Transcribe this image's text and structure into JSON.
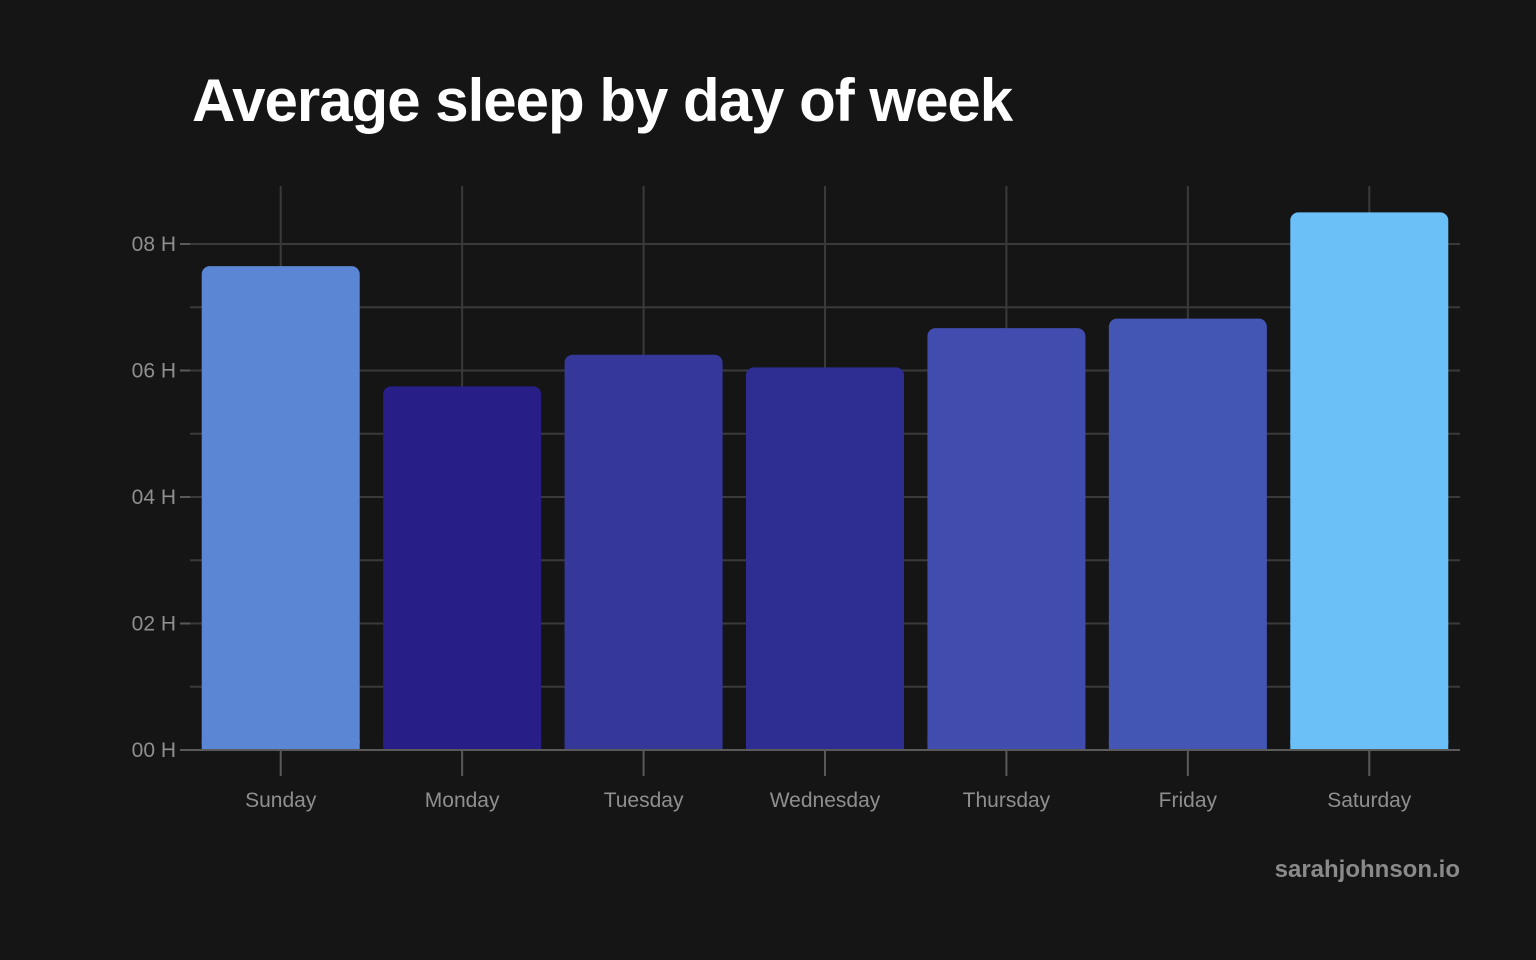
{
  "title": "Average sleep by day of week",
  "credit": "sarahjohnson.io",
  "chart_data": {
    "type": "bar",
    "title": "Average sleep by day of week",
    "xlabel": "",
    "ylabel": "",
    "categories": [
      "Sunday",
      "Monday",
      "Tuesday",
      "Wednesday",
      "Thursday",
      "Friday",
      "Saturday"
    ],
    "values": [
      7.65,
      5.75,
      6.25,
      6.05,
      6.67,
      6.82,
      8.5
    ],
    "bar_colors": [
      "#5b86d4",
      "#271e88",
      "#353799",
      "#2e2d92",
      "#414caf",
      "#4456b3",
      "#6bc0f8"
    ],
    "ylim": [
      0,
      9
    ],
    "yticks": [
      0,
      2,
      4,
      6,
      8
    ],
    "ytick_labels": [
      "00 H",
      "02 H",
      "04 H",
      "06 H",
      "08 H"
    ],
    "grid": true,
    "legend": "none"
  },
  "colors": {
    "background": "#151515",
    "grid": "#3a3a3a",
    "axis": "#5a5a5a",
    "tick_text": "#8f8f8f",
    "title_text": "#ffffff",
    "credit_text": "#8a8a8a"
  }
}
